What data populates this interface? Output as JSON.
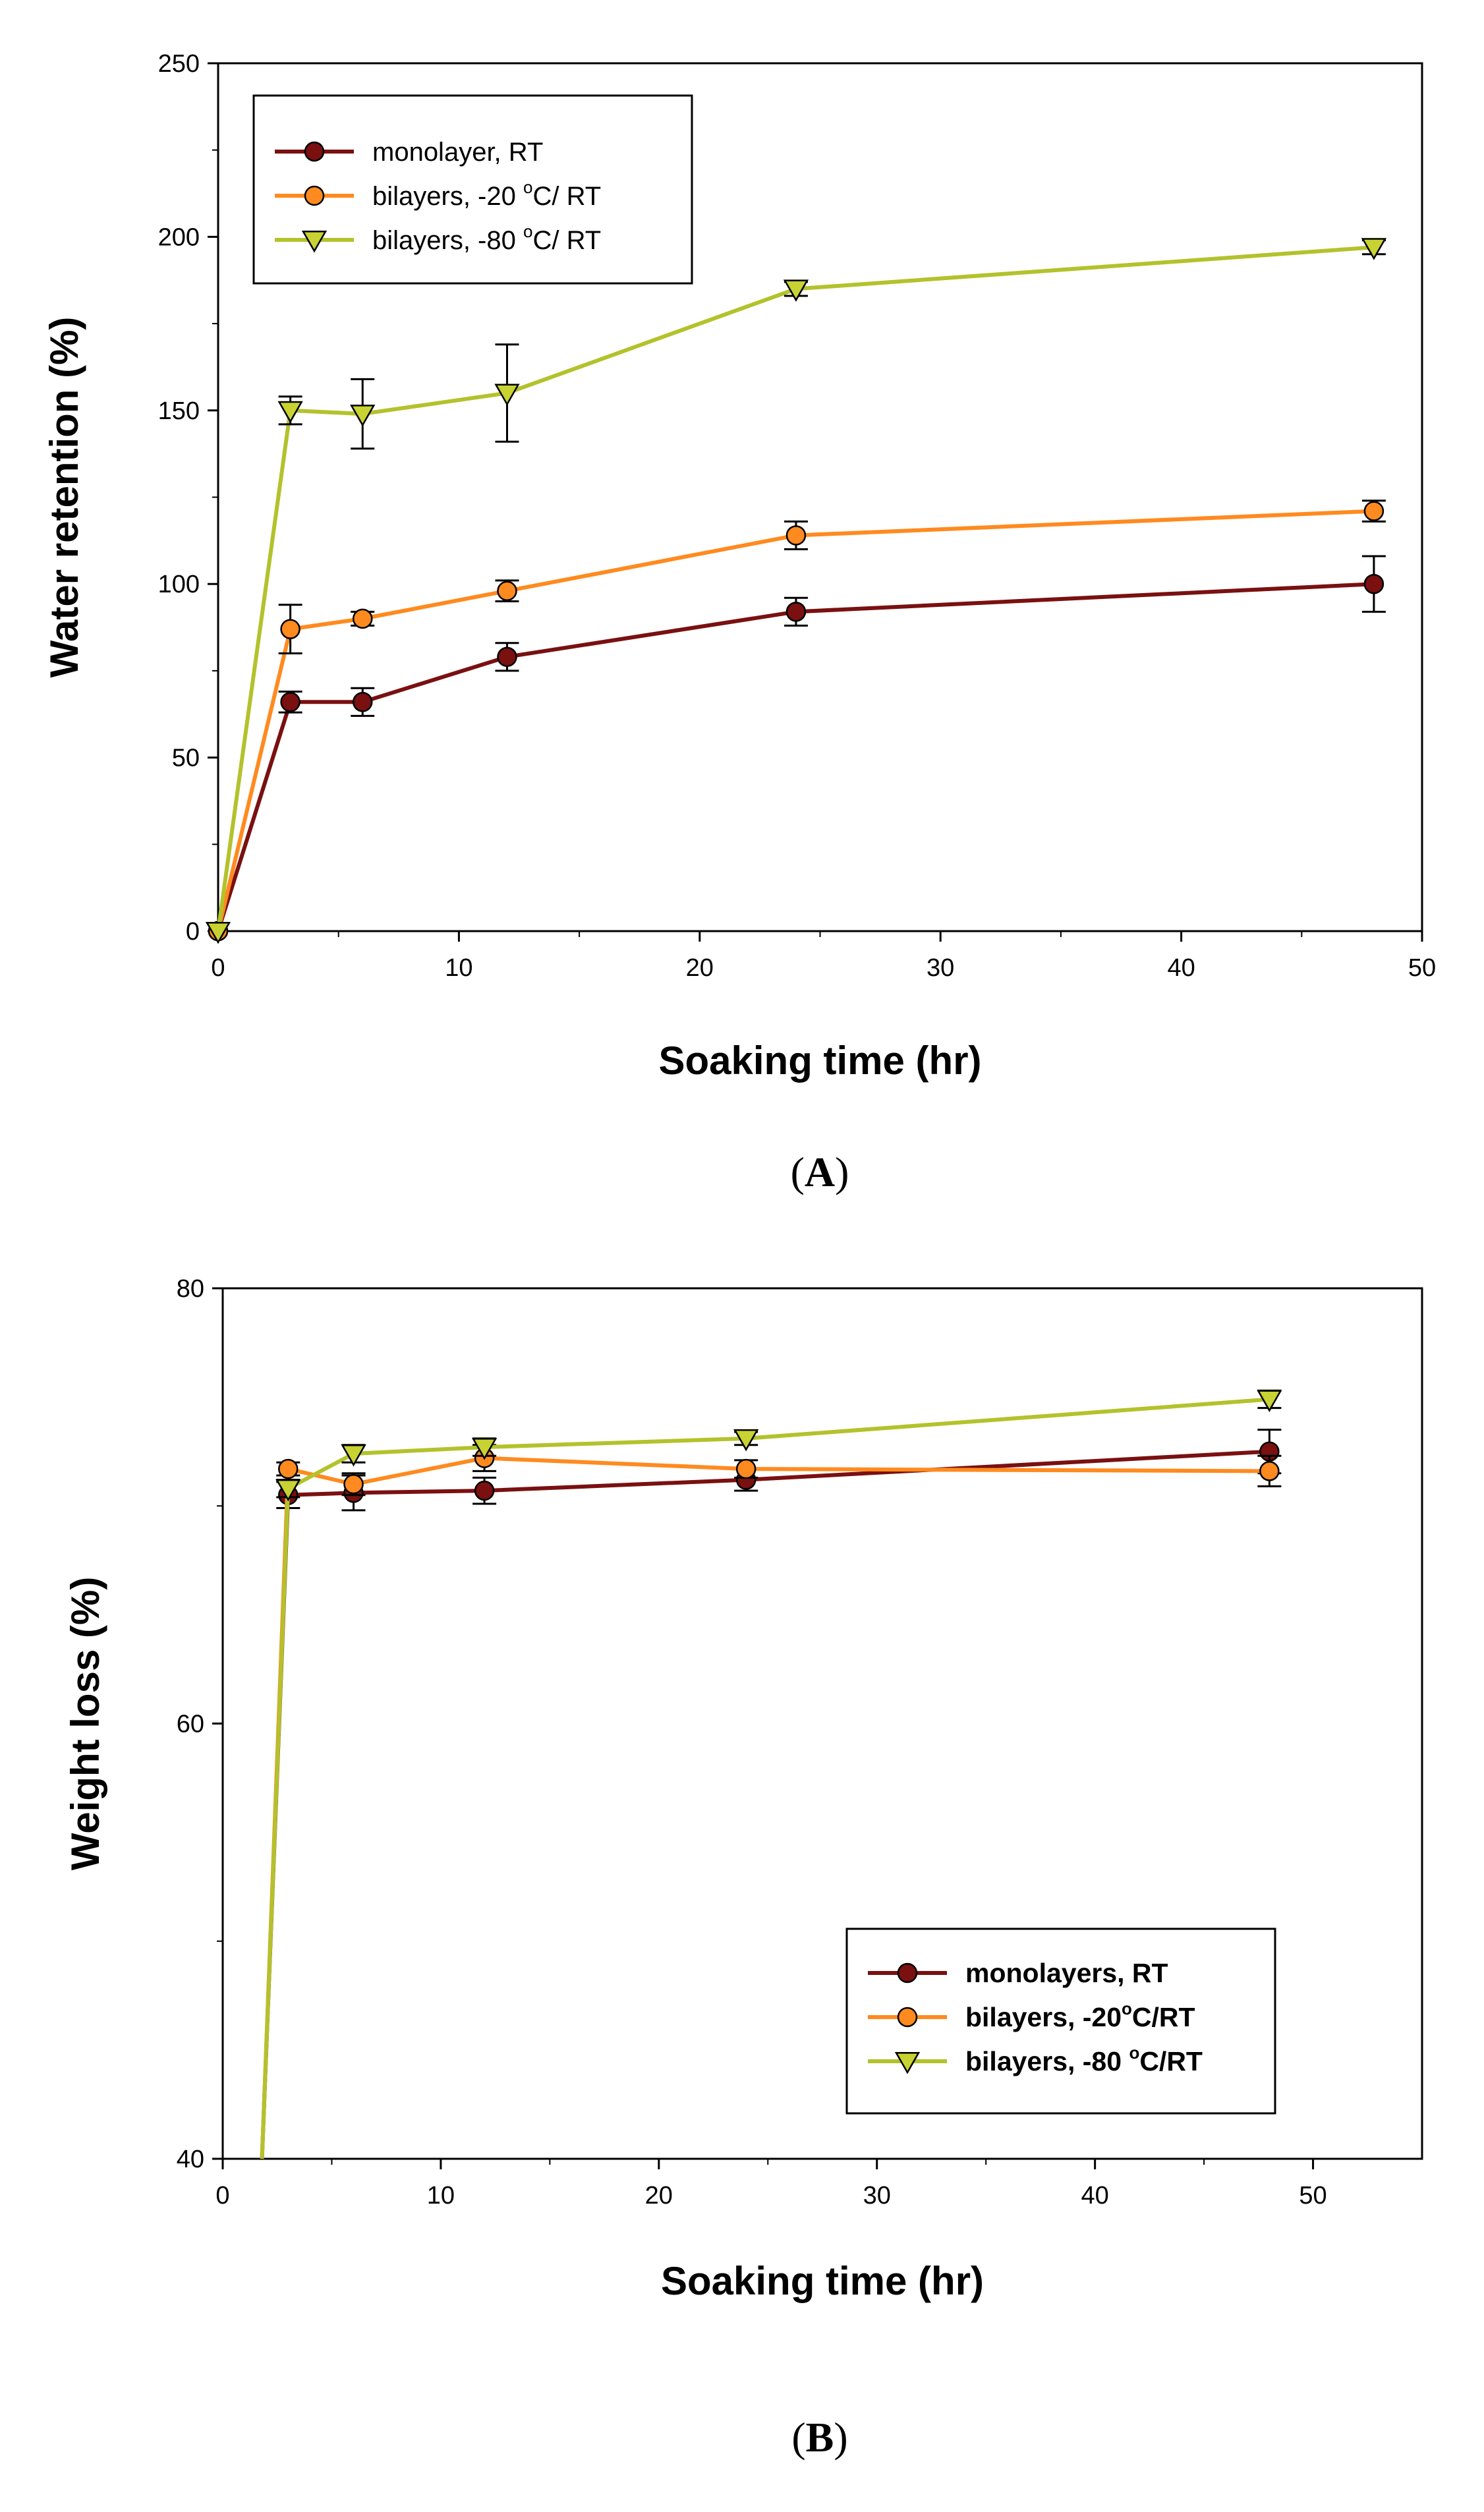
{
  "chart_data": [
    {
      "panel": "A",
      "type": "line",
      "xlabel": "Soaking time (hr)",
      "ylabel": "Water retention (%)",
      "xlim": [
        0,
        50
      ],
      "ylim": [
        0,
        250
      ],
      "xticks": [
        0,
        10,
        20,
        30,
        40,
        50
      ],
      "yticks": [
        0,
        50,
        100,
        150,
        200,
        250
      ],
      "legend_position": "top-left",
      "series": [
        {
          "name": "monolayer, RT",
          "name_main": "monolayer, RT",
          "marker": "circle",
          "color": "#7a1010",
          "marker_color": "#7a1010",
          "x": [
            0,
            3,
            6,
            12,
            24,
            48
          ],
          "y": [
            0,
            66,
            66,
            79,
            92,
            100
          ],
          "err": [
            0,
            3,
            4,
            4,
            4,
            8
          ]
        },
        {
          "name": "bilayers, -20 °C/ RT",
          "name_main": "bilayers, -20 ",
          "name_sup": "o",
          "name_rest": "C/ RT",
          "marker": "circle",
          "color": "#ff8a1f",
          "marker_color": "#ff8a1f",
          "x": [
            0,
            3,
            6,
            12,
            24,
            48
          ],
          "y": [
            0,
            87,
            90,
            98,
            114,
            121
          ],
          "err": [
            0,
            7,
            2,
            3,
            4,
            3
          ]
        },
        {
          "name": "bilayers, -80 °C/ RT",
          "name_main": "bilayers, -80 ",
          "name_sup": "o",
          "name_rest": "C/ RT",
          "marker": "triangle",
          "color": "#b3c22b",
          "marker_color": "#c8d232",
          "x": [
            0,
            3,
            6,
            12,
            24,
            48
          ],
          "y": [
            0,
            150,
            149,
            155,
            185,
            197
          ],
          "err": [
            0,
            4,
            10,
            14,
            2,
            2
          ]
        }
      ],
      "panel_label": {
        "open": "(",
        "letter": "A",
        "close": ")"
      }
    },
    {
      "panel": "B",
      "type": "line",
      "xlabel": "Soaking time (hr)",
      "ylabel": "Weight loss (%)",
      "xlim": [
        0,
        55
      ],
      "ylim": [
        40,
        80
      ],
      "xticks": [
        0,
        10,
        20,
        30,
        40,
        50
      ],
      "yticks": [
        40,
        60,
        80
      ],
      "legend_position": "bottom-right",
      "series": [
        {
          "name": "monolayers, RT",
          "name_main": "monolayers, RT",
          "marker": "circle",
          "color": "#7a1010",
          "marker_color": "#7a1010",
          "x": [
            1.8,
            3,
            6,
            12,
            24,
            48
          ],
          "y": [
            40,
            70.5,
            70.6,
            70.7,
            71.2,
            72.5
          ],
          "err": [
            0,
            0.6,
            0.8,
            0.6,
            0.5,
            1.0
          ]
        },
        {
          "name": "bilayers, -20°C/RT",
          "name_main": "bilayers, -20",
          "name_sup": "o",
          "name_rest": "C/RT",
          "marker": "circle",
          "color": "#ff8a1f",
          "marker_color": "#ff8a1f",
          "x": [
            1.8,
            3,
            6,
            12,
            24,
            48
          ],
          "y": [
            40,
            71.7,
            71.0,
            72.2,
            71.7,
            71.6
          ],
          "err": [
            0,
            0.3,
            0.5,
            0.6,
            0.4,
            0.7
          ]
        },
        {
          "name": "bilayers, -80 °C/RT",
          "name_main": "bilayers, -80 ",
          "name_sup": "o",
          "name_rest": "C/RT",
          "marker": "triangle",
          "color": "#b3c22b",
          "marker_color": "#c8d232",
          "x": [
            1.8,
            3,
            6,
            12,
            24,
            48
          ],
          "y": [
            40,
            70.8,
            72.4,
            72.7,
            73.1,
            74.9
          ],
          "err": [
            0,
            0.4,
            0.4,
            0.4,
            0.3,
            0.4
          ]
        }
      ],
      "panel_label": {
        "open": "(",
        "letter": "B",
        "close": ")"
      }
    }
  ]
}
